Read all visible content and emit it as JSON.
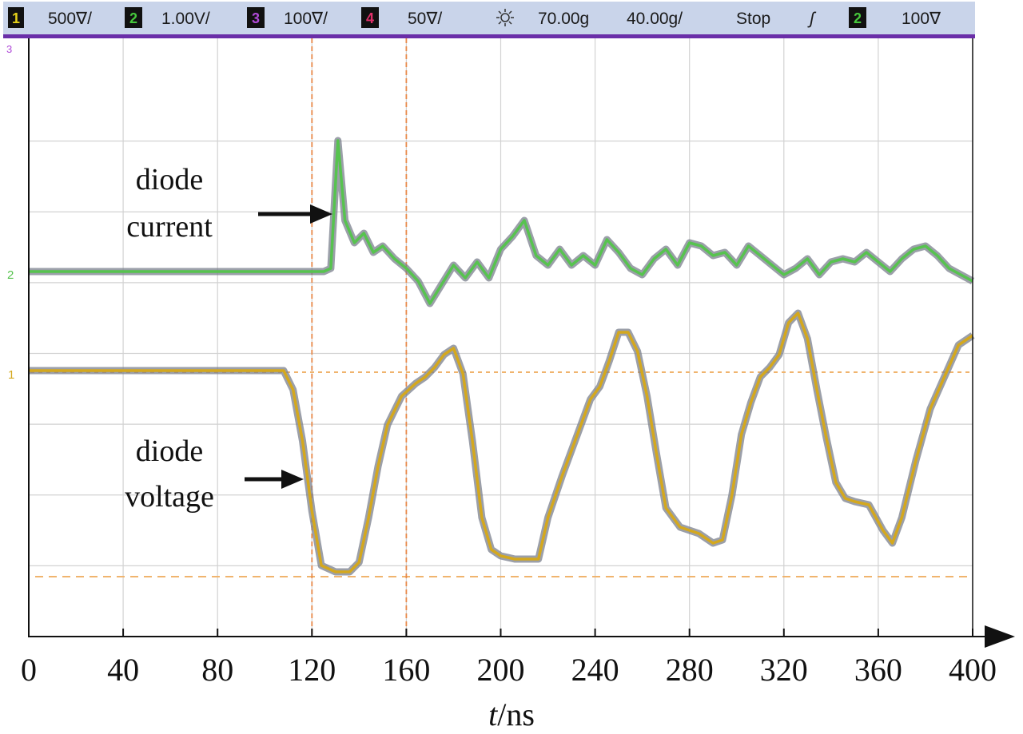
{
  "scope_status": {
    "ch1": {
      "num": "1",
      "scale": "500∇/",
      "color": "#e6d21a"
    },
    "ch2": {
      "num": "2",
      "scale": "1.00V/",
      "color": "#46c83c"
    },
    "ch3": {
      "num": "3",
      "scale": "100∇/",
      "color": "#b04ad8"
    },
    "ch4": {
      "num": "4",
      "scale": "50∇/",
      "color": "#e0306a"
    },
    "delay": "70.00ɡ",
    "timebase": "40.00ɡ/",
    "run_state": "Stop",
    "trigger_symbol": "ʃ",
    "trigger_channel": "2",
    "trigger_level": "100∇"
  },
  "chart_data": {
    "type": "line",
    "xlabel_italic": "t",
    "xlabel_unit": "/ns",
    "xlim": [
      0,
      400
    ],
    "x_ticks": [
      "0",
      "40",
      "80",
      "120",
      "160",
      "200",
      "240",
      "280",
      "320",
      "360",
      "400"
    ],
    "grid": true,
    "cursor_lines_x": [
      120,
      160
    ],
    "reference_levels": [
      {
        "color": "#f0b46e",
        "note_id": "voltage-baseline"
      },
      {
        "color": "#f0b46e",
        "note_id": "voltage-bottom"
      }
    ],
    "series": [
      {
        "name": "diode current",
        "color": "#57c34f",
        "shadow_color": "#7a7f8c",
        "x": [
          0,
          20,
          40,
          60,
          80,
          100,
          110,
          120,
          125,
          128,
          131,
          134,
          138,
          142,
          146,
          150,
          155,
          160,
          165,
          170,
          175,
          180,
          185,
          190,
          195,
          200,
          205,
          210,
          215,
          220,
          225,
          230,
          235,
          240,
          245,
          250,
          255,
          260,
          265,
          270,
          275,
          280,
          285,
          290,
          295,
          300,
          305,
          310,
          315,
          320,
          325,
          330,
          335,
          340,
          345,
          350,
          355,
          360,
          365,
          370,
          375,
          380,
          385,
          390,
          395,
          400
        ],
        "values": [
          0,
          0,
          0,
          0,
          0,
          0,
          0,
          0,
          0,
          0.1,
          4.1,
          1.6,
          0.9,
          1.2,
          0.6,
          0.8,
          0.4,
          0.1,
          -0.3,
          -1.0,
          -0.4,
          0.2,
          -0.2,
          0.3,
          -0.2,
          0.7,
          1.1,
          1.6,
          0.5,
          0.2,
          0.7,
          0.2,
          0.5,
          0.2,
          1.0,
          0.6,
          0.1,
          -0.1,
          0.4,
          0.7,
          0.2,
          0.9,
          0.8,
          0.5,
          0.6,
          0.2,
          0.8,
          0.5,
          0.2,
          -0.1,
          0.1,
          0.4,
          -0.1,
          0.3,
          0.4,
          0.3,
          0.6,
          0.3,
          0.0,
          0.4,
          0.7,
          0.8,
          0.5,
          0.1,
          -0.1,
          -0.3
        ]
      },
      {
        "name": "diode voltage",
        "color": "#d4a81e",
        "shadow_color": "#7a7f8c",
        "x": [
          0,
          40,
          80,
          108,
          112,
          116,
          120,
          124,
          130,
          136,
          140,
          144,
          148,
          152,
          158,
          164,
          168,
          172,
          176,
          180,
          184,
          188,
          192,
          196,
          200,
          206,
          212,
          216,
          220,
          226,
          232,
          238,
          242,
          246,
          250,
          254,
          258,
          262,
          266,
          270,
          276,
          284,
          290,
          294,
          298,
          302,
          306,
          310,
          314,
          318,
          322,
          326,
          330,
          334,
          338,
          342,
          346,
          350,
          356,
          362,
          366,
          370,
          376,
          382,
          388,
          394,
          400
        ],
        "values": [
          0,
          0,
          0,
          0,
          -0.6,
          -2.2,
          -4.4,
          -6.1,
          -6.3,
          -6.3,
          -6.0,
          -4.6,
          -3.0,
          -1.7,
          -0.8,
          -0.4,
          -0.2,
          0.1,
          0.5,
          0.7,
          -0.1,
          -2.2,
          -4.6,
          -5.6,
          -5.8,
          -5.9,
          -5.9,
          -5.9,
          -4.6,
          -3.3,
          -2.1,
          -0.9,
          -0.5,
          0.3,
          1.2,
          1.2,
          0.6,
          -0.8,
          -2.6,
          -4.3,
          -4.9,
          -5.1,
          -5.4,
          -5.3,
          -3.9,
          -2.0,
          -1.0,
          -0.2,
          0.1,
          0.5,
          1.5,
          1.8,
          1.0,
          -0.6,
          -2.1,
          -3.5,
          -4.0,
          -4.1,
          -4.2,
          -5.0,
          -5.4,
          -4.6,
          -2.8,
          -1.2,
          -0.2,
          0.8,
          1.1
        ]
      }
    ],
    "annotations": [
      {
        "lines": [
          "diode",
          "current"
        ]
      },
      {
        "lines": [
          "diode",
          "voltage"
        ]
      }
    ]
  }
}
